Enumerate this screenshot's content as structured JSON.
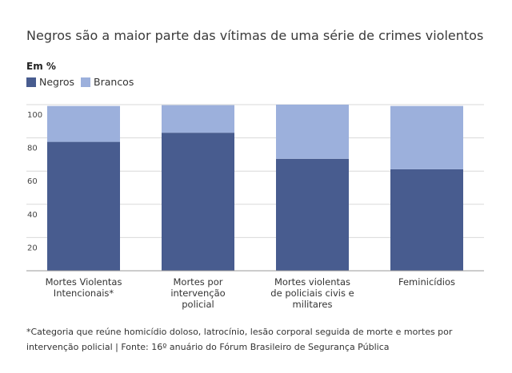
{
  "header": {
    "title": "Negros são a maior parte das vítimas de uma série de crimes violentos",
    "unit_label": "Em %"
  },
  "colors": {
    "negros": "#485c8f",
    "brancos": "#9cb0dc",
    "grid": "#d9d9d9",
    "axis": "#9a9a9a"
  },
  "chart_data": {
    "type": "bar",
    "stacked": true,
    "title": "Negros são a maior parte das vítimas de uma série de crimes violentos",
    "ylabel": "Em %",
    "xlabel": "",
    "ylim": [
      0,
      100
    ],
    "yticks": [
      20,
      40,
      60,
      80,
      100
    ],
    "grid": true,
    "legend_position": "top-left",
    "categories": [
      [
        "Mortes Violentas",
        "Intencionais*"
      ],
      [
        "Mortes por",
        "intervenção",
        "policial"
      ],
      [
        "Mortes violentas",
        "de policiais civis e",
        "militares"
      ],
      [
        "Feminicídios"
      ]
    ],
    "series": [
      {
        "name": "Negros",
        "values": [
          77.6,
          83.1,
          67.4,
          61.1
        ]
      },
      {
        "name": "Brancos",
        "values": [
          21.6,
          16.6,
          32.6,
          38.1
        ]
      }
    ]
  },
  "footnote": "*Categoria que reúne homicídio doloso, latrocínio, lesão corporal seguida de morte e mortes por intervenção policial | Fonte: 16º anuário do Fórum Brasileiro de Segurança Pública"
}
